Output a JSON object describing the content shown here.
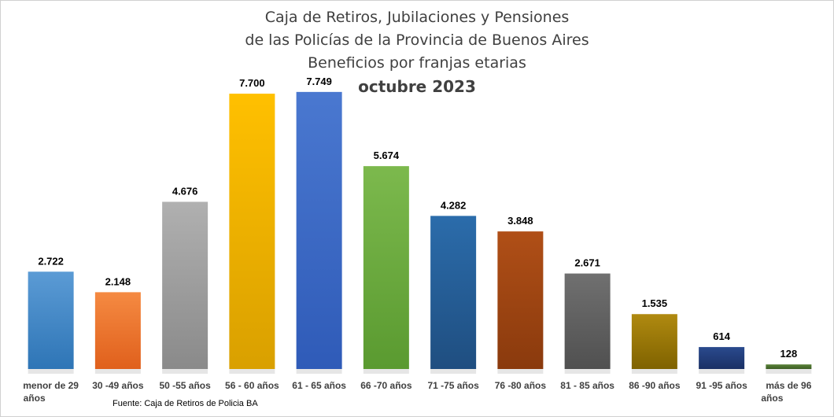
{
  "chart_data": {
    "type": "bar",
    "title_lines": [
      "Caja de Retiros, Jubilaciones y Pensiones",
      "de las Policías de la Provincia de Buenos Aires",
      "Beneficios por franjas etarias"
    ],
    "subtitle": "octubre 2023",
    "categories": [
      [
        "menor de 29",
        "años"
      ],
      [
        "30 -49 años"
      ],
      [
        "50 -55 años"
      ],
      [
        "56 - 60 años"
      ],
      [
        "61 - 65 años"
      ],
      [
        "66 -70 años"
      ],
      [
        "71 -75 años"
      ],
      [
        "76 -80 años"
      ],
      [
        "81 - 85 años"
      ],
      [
        "86 -90 años"
      ],
      [
        "91 -95 años"
      ],
      [
        "más de 96",
        "años"
      ]
    ],
    "values": [
      2722,
      2148,
      4676,
      7700,
      7749,
      5674,
      4282,
      3848,
      2671,
      1535,
      614,
      128
    ],
    "value_labels": [
      "2.722",
      "2.148",
      "4.676",
      "7.700",
      "7.749",
      "5.674",
      "4.282",
      "3.848",
      "2.671",
      "1.535",
      "614",
      "128"
    ],
    "colors": [
      [
        "#5b9bd5",
        "#2e75b6"
      ],
      [
        "#f58a42",
        "#e0601c"
      ],
      [
        "#b0b0b0",
        "#8a8a8a"
      ],
      [
        "#ffc000",
        "#d9a000"
      ],
      [
        "#4a78d0",
        "#2f5bb8"
      ],
      [
        "#7cb94d",
        "#5a9a30"
      ],
      [
        "#2b6cab",
        "#1f4e80"
      ],
      [
        "#b04f17",
        "#8a3a0d"
      ],
      [
        "#707070",
        "#505050"
      ],
      [
        "#b08a10",
        "#7f6200"
      ],
      [
        "#2a4a8e",
        "#1a3065"
      ],
      [
        "#5a8238",
        "#3d5c24"
      ]
    ],
    "ylim": [
      0,
      9000
    ],
    "grid": false,
    "legend": false
  },
  "source": "Fuente: Caja de Retiros de Policia BA"
}
